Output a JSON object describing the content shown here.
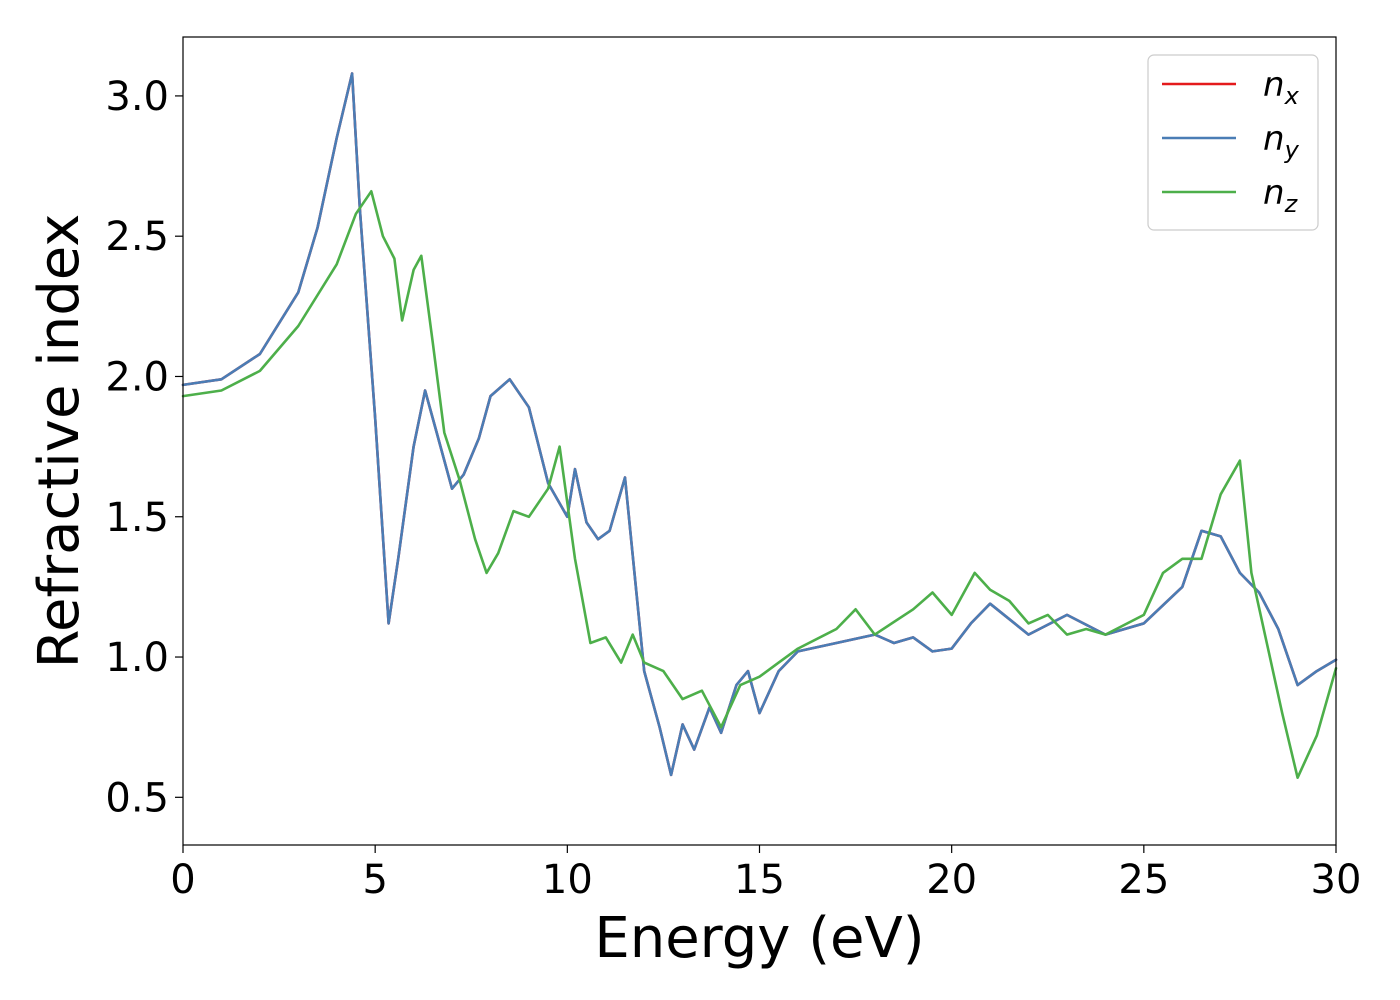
{
  "chart_data": {
    "type": "line",
    "xlabel": "Energy (eV)",
    "ylabel": "Refractive index",
    "xlim": [
      0,
      30
    ],
    "ylim": [
      0.33,
      3.21
    ],
    "xticks": [
      "0",
      "5",
      "10",
      "15",
      "20",
      "25",
      "30"
    ],
    "yticks": [
      "0.5",
      "1.0",
      "1.5",
      "2.0",
      "2.5",
      "3.0"
    ],
    "grid": false,
    "legend_position": "top-right",
    "series": [
      {
        "name": "n_x",
        "label_base": "n",
        "label_sub": "x",
        "color": "#e41a1c",
        "x": [
          0,
          1,
          2,
          3,
          3.5,
          4.0,
          4.4,
          4.6,
          5.0,
          5.35,
          5.6,
          6.0,
          6.3,
          6.6,
          7.0,
          7.3,
          7.7,
          8.0,
          8.5,
          9.0,
          9.5,
          10.0,
          10.2,
          10.5,
          10.8,
          11.1,
          11.5,
          12.0,
          12.4,
          12.7,
          13.0,
          13.3,
          13.7,
          14.0,
          14.4,
          14.7,
          15.0,
          15.5,
          16.0,
          17.0,
          18.0,
          18.5,
          19.0,
          19.5,
          20.0,
          20.5,
          21.0,
          22.0,
          23.0,
          24.0,
          25.0,
          26.0,
          26.5,
          27.0,
          27.5,
          28.0,
          28.5,
          29.0,
          29.5,
          30.0
        ],
        "y": [
          1.97,
          1.99,
          2.08,
          2.3,
          2.53,
          2.85,
          3.08,
          2.6,
          1.85,
          1.12,
          1.35,
          1.75,
          1.95,
          1.8,
          1.6,
          1.65,
          1.78,
          1.93,
          1.99,
          1.89,
          1.62,
          1.5,
          1.67,
          1.48,
          1.42,
          1.45,
          1.64,
          0.95,
          0.75,
          0.58,
          0.76,
          0.67,
          0.82,
          0.73,
          0.9,
          0.95,
          0.8,
          0.95,
          1.02,
          1.05,
          1.08,
          1.05,
          1.07,
          1.02,
          1.03,
          1.12,
          1.19,
          1.08,
          1.15,
          1.08,
          1.12,
          1.25,
          1.45,
          1.43,
          1.3,
          1.23,
          1.1,
          0.9,
          0.95,
          0.99
        ]
      },
      {
        "name": "n_y",
        "label_base": "n",
        "label_sub": "y",
        "color": "#4a7db5",
        "x": [
          0,
          1,
          2,
          3,
          3.5,
          4.0,
          4.4,
          4.6,
          5.0,
          5.35,
          5.6,
          6.0,
          6.3,
          6.6,
          7.0,
          7.3,
          7.7,
          8.0,
          8.5,
          9.0,
          9.5,
          10.0,
          10.2,
          10.5,
          10.8,
          11.1,
          11.5,
          12.0,
          12.4,
          12.7,
          13.0,
          13.3,
          13.7,
          14.0,
          14.4,
          14.7,
          15.0,
          15.5,
          16.0,
          17.0,
          18.0,
          18.5,
          19.0,
          19.5,
          20.0,
          20.5,
          21.0,
          22.0,
          23.0,
          24.0,
          25.0,
          26.0,
          26.5,
          27.0,
          27.5,
          28.0,
          28.5,
          29.0,
          29.5,
          30.0
        ],
        "y": [
          1.97,
          1.99,
          2.08,
          2.3,
          2.53,
          2.85,
          3.08,
          2.6,
          1.85,
          1.12,
          1.35,
          1.75,
          1.95,
          1.8,
          1.6,
          1.65,
          1.78,
          1.93,
          1.99,
          1.89,
          1.62,
          1.5,
          1.67,
          1.48,
          1.42,
          1.45,
          1.64,
          0.95,
          0.75,
          0.58,
          0.76,
          0.67,
          0.82,
          0.73,
          0.9,
          0.95,
          0.8,
          0.95,
          1.02,
          1.05,
          1.08,
          1.05,
          1.07,
          1.02,
          1.03,
          1.12,
          1.19,
          1.08,
          1.15,
          1.08,
          1.12,
          1.25,
          1.45,
          1.43,
          1.3,
          1.23,
          1.1,
          0.9,
          0.95,
          0.99
        ]
      },
      {
        "name": "n_z",
        "label_base": "n",
        "label_sub": "z",
        "color": "#4daf4a",
        "x": [
          0,
          1,
          2,
          3,
          4.0,
          4.5,
          4.9,
          5.2,
          5.5,
          5.7,
          6.0,
          6.2,
          6.5,
          6.8,
          7.2,
          7.6,
          7.9,
          8.2,
          8.6,
          9.0,
          9.5,
          9.8,
          10.2,
          10.6,
          11.0,
          11.4,
          11.7,
          12.0,
          12.5,
          13.0,
          13.5,
          14.0,
          14.5,
          15.0,
          15.5,
          16.0,
          17.0,
          17.5,
          18.0,
          19.0,
          19.5,
          20.0,
          20.6,
          21.0,
          21.5,
          22.0,
          22.5,
          23.0,
          23.5,
          24.0,
          25.0,
          25.5,
          26.0,
          26.5,
          27.0,
          27.5,
          27.8,
          28.2,
          28.6,
          29.0,
          29.5,
          30.0
        ],
        "y": [
          1.93,
          1.95,
          2.02,
          2.18,
          2.4,
          2.58,
          2.66,
          2.5,
          2.42,
          2.2,
          2.38,
          2.43,
          2.12,
          1.8,
          1.63,
          1.42,
          1.3,
          1.37,
          1.52,
          1.5,
          1.6,
          1.75,
          1.35,
          1.05,
          1.07,
          0.98,
          1.08,
          0.98,
          0.95,
          0.85,
          0.88,
          0.75,
          0.9,
          0.93,
          0.98,
          1.03,
          1.1,
          1.17,
          1.08,
          1.17,
          1.23,
          1.15,
          1.3,
          1.24,
          1.2,
          1.12,
          1.15,
          1.08,
          1.1,
          1.08,
          1.15,
          1.3,
          1.35,
          1.35,
          1.58,
          1.7,
          1.3,
          1.05,
          0.8,
          0.57,
          0.72,
          0.96
        ]
      }
    ]
  }
}
